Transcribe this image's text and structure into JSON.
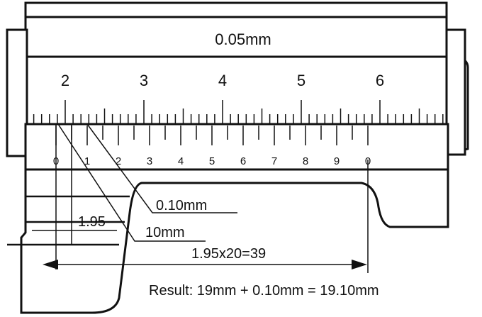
{
  "diagram": {
    "precision_label": "0.05mm",
    "main_scale_numbers": [
      "2",
      "3",
      "4",
      "5",
      "6"
    ],
    "vernier_numbers": [
      "0",
      "1",
      "2",
      "3",
      "4",
      "5",
      "6",
      "7",
      "8",
      "9",
      "0"
    ],
    "callouts": {
      "aligned_reading": "0.10mm",
      "main_reading": "10mm",
      "vernier_offset": "1.95",
      "span_formula": "1.95x20=39"
    },
    "result": "Result: 19mm + 0.10mm = 19.10mm"
  },
  "colors": {
    "ink": "#111111",
    "paper": "#ffffff"
  }
}
